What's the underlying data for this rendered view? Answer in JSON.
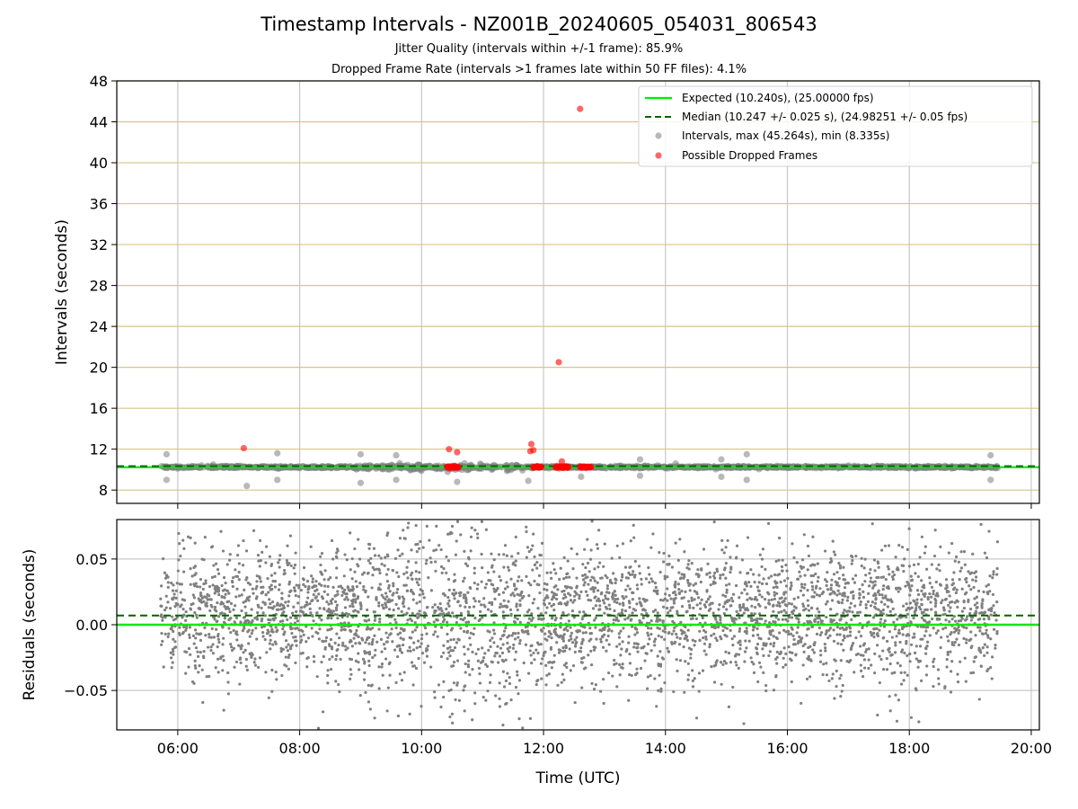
{
  "title": "Timestamp Intervals - NZ001B_20240605_054031_806543",
  "subtitle1": "Jitter Quality (intervals within +/-1 frame): 85.9%",
  "subtitle2": "Dropped Frame Rate (intervals >1 frames late within 50 FF files): 4.1%",
  "colors": {
    "expected": "#00ee00",
    "median": "#006400",
    "intervals": "#808080",
    "dropped": "#ff0000",
    "hgrid_top": "#d8c38a",
    "grid": "#c8c8c8"
  },
  "chart_data": [
    {
      "type": "scatter",
      "ylabel": "Intervals (seconds)",
      "xlim": [
        "05:00",
        "20:08"
      ],
      "ylim": [
        6.7,
        48
      ],
      "yticks": [
        "8",
        "12",
        "16",
        "20",
        "24",
        "28",
        "32",
        "36",
        "40",
        "44",
        "48"
      ],
      "grid": true,
      "legend_position": "top-right",
      "legend": [
        "Expected (10.240s), (25.00000 fps)",
        "Median (10.247 +/- 0.025 s), (24.98251 +/- 0.05 fps)",
        "Intervals, max (45.264s), min (8.335s)",
        "Possible Dropped Frames"
      ],
      "expected_interval": 10.24,
      "median_interval": 10.247,
      "intervals_time_range": [
        "05:43",
        "19:27"
      ],
      "intervals_min": 8.335,
      "intervals_max": 45.264,
      "interval_outliers": [
        {
          "x": "05:49",
          "y": 11.5
        },
        {
          "x": "05:49",
          "y": 9.0
        },
        {
          "x": "06:35",
          "y": 10.5
        },
        {
          "x": "07:08",
          "y": 8.4
        },
        {
          "x": "07:38",
          "y": 11.6
        },
        {
          "x": "07:38",
          "y": 9.0
        },
        {
          "x": "09:00",
          "y": 11.5
        },
        {
          "x": "09:00",
          "y": 8.7
        },
        {
          "x": "09:35",
          "y": 11.4
        },
        {
          "x": "09:35",
          "y": 9.0
        },
        {
          "x": "10:35",
          "y": 8.8
        },
        {
          "x": "11:45",
          "y": 8.9
        },
        {
          "x": "12:37",
          "y": 9.3
        },
        {
          "x": "13:35",
          "y": 11.0
        },
        {
          "x": "13:35",
          "y": 9.4
        },
        {
          "x": "14:10",
          "y": 10.6
        },
        {
          "x": "14:55",
          "y": 11.0
        },
        {
          "x": "14:55",
          "y": 9.3
        },
        {
          "x": "15:20",
          "y": 11.5
        },
        {
          "x": "15:20",
          "y": 9.0
        },
        {
          "x": "17:00",
          "y": 10.4
        },
        {
          "x": "19:20",
          "y": 11.4
        },
        {
          "x": "19:20",
          "y": 9.0
        }
      ],
      "dropped_frames": [
        {
          "x": "07:05",
          "y": 12.1
        },
        {
          "x": "10:27",
          "y": 12.0
        },
        {
          "x": "10:35",
          "y": 11.7
        },
        {
          "x": "11:48",
          "y": 12.5
        },
        {
          "x": "11:47",
          "y": 11.8
        },
        {
          "x": "11:50",
          "y": 11.9
        },
        {
          "x": "12:15",
          "y": 20.5
        },
        {
          "x": "12:18",
          "y": 10.8
        },
        {
          "x": "12:36",
          "y": 45.264
        }
      ],
      "dropped_clusters": [
        {
          "start": "10:25",
          "end": "10:37",
          "y": 10.25
        },
        {
          "start": "11:50",
          "end": "11:58",
          "y": 10.25
        },
        {
          "start": "12:12",
          "end": "12:25",
          "y": 10.25
        },
        {
          "start": "12:36",
          "end": "12:47",
          "y": 10.25
        }
      ]
    },
    {
      "type": "scatter",
      "xlabel": "Time (UTC)",
      "ylabel": "Residuals (seconds)",
      "xlim": [
        "05:00",
        "20:08"
      ],
      "ylim": [
        -0.08,
        0.08
      ],
      "xticks": [
        "06:00",
        "08:00",
        "10:00",
        "12:00",
        "14:00",
        "16:00",
        "18:00",
        "20:00"
      ],
      "yticks": [
        "−0.05",
        "0.00",
        "0.05"
      ],
      "grid": true,
      "expected_residual": 0.0,
      "median_residual": 0.007,
      "residuals_time_range": [
        "05:43",
        "19:27"
      ],
      "residual_spread_std": 0.025
    }
  ]
}
